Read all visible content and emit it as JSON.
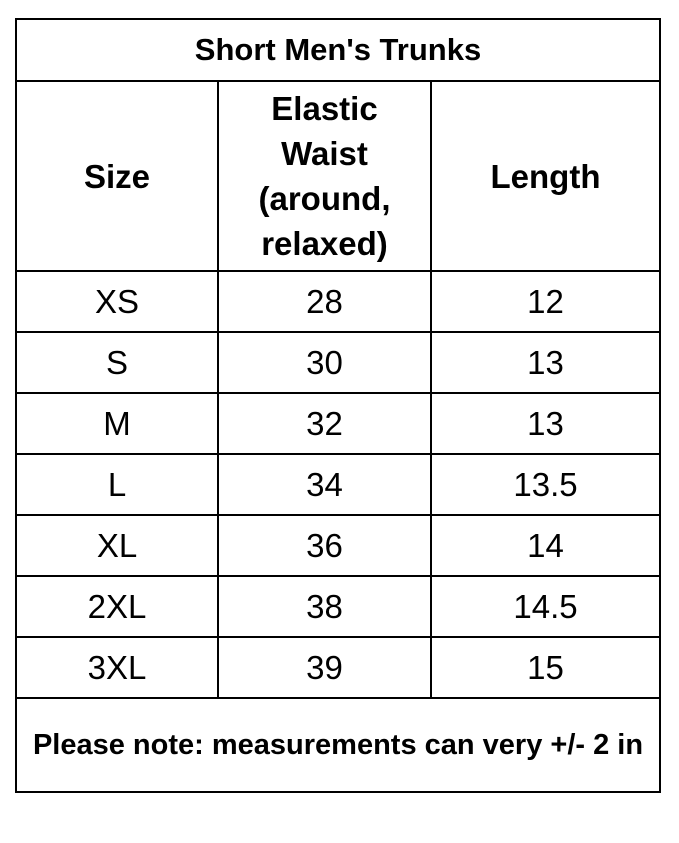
{
  "title": "Short Men's Trunks",
  "headers": [
    "Size",
    "Elastic Waist (around, relaxed)",
    "Length"
  ],
  "rows": [
    [
      "XS",
      "28",
      "12"
    ],
    [
      "S",
      "30",
      "13"
    ],
    [
      "M",
      "32",
      "13"
    ],
    [
      "L",
      "34",
      "13.5"
    ],
    [
      "XL",
      "36",
      "14"
    ],
    [
      "2XL",
      "38",
      "14.5"
    ],
    [
      "3XL",
      "39",
      "15"
    ]
  ],
  "note": "Please note: measurements can very +/- 2 in"
}
